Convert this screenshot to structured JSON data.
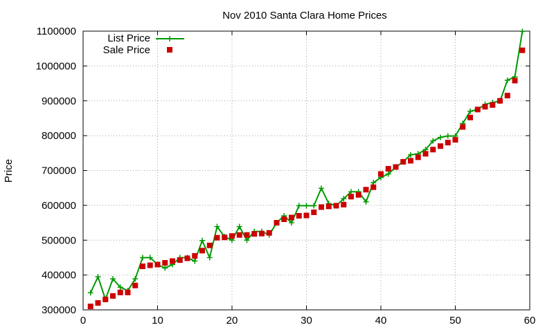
{
  "chart_data": {
    "type": "line",
    "title": "Nov 2010 Santa Clara Home Prices",
    "xlabel": "",
    "ylabel": "Price",
    "xlim": [
      0,
      60
    ],
    "ylim": [
      300000,
      1100000
    ],
    "grid": true,
    "legend_position": "top-left",
    "x_ticks": [
      0,
      10,
      20,
      30,
      40,
      50,
      60
    ],
    "y_ticks": [
      300000,
      400000,
      500000,
      600000,
      700000,
      800000,
      900000,
      1000000,
      1100000
    ],
    "x_tick_labels": [
      "0",
      "10",
      "20",
      "30",
      "40",
      "50",
      "60"
    ],
    "y_tick_labels": [
      "300000",
      "400000",
      "500000",
      "600000",
      "700000",
      "800000",
      "900000",
      "1000000",
      "1100000"
    ],
    "x": [
      1,
      2,
      3,
      4,
      5,
      6,
      7,
      8,
      9,
      10,
      11,
      12,
      13,
      14,
      15,
      16,
      17,
      18,
      19,
      20,
      21,
      22,
      23,
      24,
      25,
      26,
      27,
      28,
      29,
      30,
      31,
      32,
      33,
      34,
      35,
      36,
      37,
      38,
      39,
      40,
      41,
      42,
      43,
      44,
      45,
      46,
      47,
      48,
      49,
      50,
      51,
      52,
      53,
      54,
      55,
      56,
      57,
      58,
      59
    ],
    "series": [
      {
        "name": "List Price",
        "style": "line-points",
        "color": "#009900",
        "values": [
          349000,
          395000,
          330000,
          389000,
          365000,
          355000,
          389000,
          450000,
          450000,
          430000,
          420000,
          430000,
          450000,
          450000,
          440000,
          499000,
          450000,
          539000,
          510000,
          500000,
          539000,
          500000,
          525000,
          525000,
          515000,
          550000,
          570000,
          550000,
          599000,
          599000,
          599000,
          649000,
          605000,
          599000,
          619000,
          639000,
          639000,
          610000,
          665000,
          680000,
          690000,
          710000,
          725000,
          745000,
          748000,
          760000,
          785000,
          795000,
          799000,
          799000,
          835000,
          870000,
          875000,
          890000,
          895000,
          899000,
          959000,
          969000,
          1099000
        ]
      },
      {
        "name": "Sale Price",
        "style": "points",
        "color": "#cc0000",
        "values": [
          310000,
          320000,
          330000,
          340000,
          350000,
          350000,
          370000,
          425000,
          428000,
          430000,
          435000,
          440000,
          443000,
          448000,
          455000,
          470000,
          485000,
          507000,
          508000,
          512000,
          515000,
          515000,
          518000,
          519000,
          521000,
          550000,
          560000,
          565000,
          570000,
          571000,
          580000,
          595000,
          597000,
          599000,
          602000,
          625000,
          630000,
          645000,
          652000,
          690000,
          705000,
          710000,
          725000,
          728000,
          738000,
          748000,
          760000,
          770000,
          780000,
          788000,
          825000,
          852000,
          875000,
          883000,
          888000,
          900000,
          915000,
          958000,
          1045000
        ]
      }
    ]
  }
}
